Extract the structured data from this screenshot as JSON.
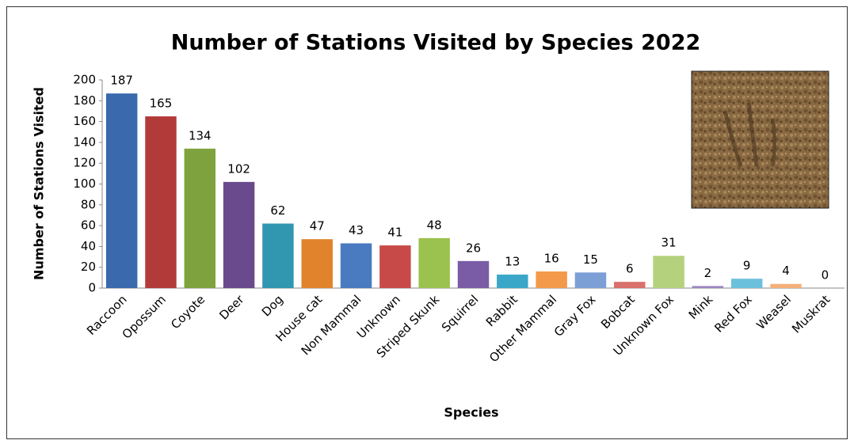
{
  "chart_data": {
    "type": "bar",
    "title": "Number of Stations Visited by Species 2022",
    "x_label": "Species",
    "y_label": "Number of Stations Visited",
    "categories": [
      "Raccoon",
      "Opossum",
      "Coyote",
      "Deer",
      "Dog",
      "House cat",
      "Non Mammal",
      "Unknown",
      "Striped Skunk",
      "Squirrel",
      "Rabbit",
      "Other Mammal",
      "Gray Fox",
      "Bobcat",
      "Unknown Fox",
      "Mink",
      "Red Fox",
      "Weasel",
      "Muskrat"
    ],
    "values": [
      187,
      165,
      134,
      102,
      62,
      47,
      43,
      41,
      48,
      26,
      13,
      16,
      15,
      6,
      31,
      2,
      9,
      4,
      0
    ],
    "colors": [
      "#3a6aad",
      "#b23b3a",
      "#7ea33e",
      "#6a4a8c",
      "#3196b0",
      "#e0832c",
      "#4a7bc0",
      "#c84a48",
      "#9bc24e",
      "#7a5ca6",
      "#3ba7c8",
      "#f39a4a",
      "#7c9fd6",
      "#d9706c",
      "#b4d27e",
      "#9a86bf",
      "#6cc0dc",
      "#f5b07a",
      "#a0a0a0"
    ],
    "ylim": [
      0,
      200
    ],
    "yticks": [
      0,
      20,
      40,
      60,
      80,
      100,
      120,
      140,
      160,
      180,
      200
    ],
    "grid": false
  }
}
